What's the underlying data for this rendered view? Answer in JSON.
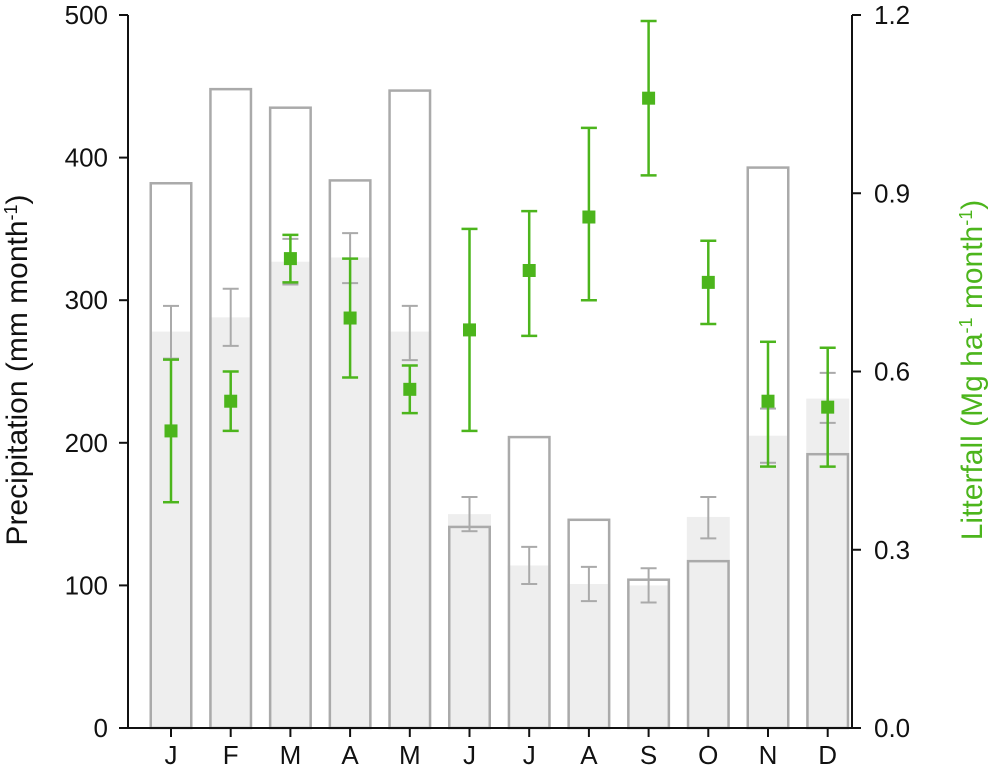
{
  "chart_data": {
    "type": "bar",
    "categories": [
      "J",
      "F",
      "M",
      "A",
      "M",
      "J",
      "J",
      "A",
      "S",
      "O",
      "N",
      "D"
    ],
    "ylabel_left": {
      "main": "Precipitation (mm month",
      "sup": "-1",
      "close": ")"
    },
    "ylabel_right": {
      "pre": "Litterfall (Mg ha",
      "sup1": "-1",
      "mid": " month",
      "sup2": "-1",
      "close": ")"
    },
    "ylim_left": [
      0,
      500
    ],
    "ylim_right": [
      0,
      1.2
    ],
    "yticks_left": [
      "0",
      "100",
      "200",
      "300",
      "400",
      "500"
    ],
    "yticks_right": [
      "0.0",
      "0.3",
      "0.6",
      "0.9",
      "1.2"
    ],
    "grid": false,
    "series": [
      {
        "kind": "outline-bar",
        "axis": "left",
        "values": [
          382,
          448,
          435,
          384,
          447,
          141,
          204,
          146,
          104,
          117,
          393,
          192
        ]
      },
      {
        "kind": "filled-bar",
        "axis": "left",
        "values": [
          278,
          288,
          327,
          330,
          278,
          150,
          114,
          101,
          100,
          148,
          205,
          231
        ],
        "error_low": [
          259,
          268,
          311,
          312,
          258,
          138,
          101,
          89,
          88,
          133,
          186,
          214
        ],
        "error_high": [
          296,
          308,
          343,
          347,
          296,
          162,
          127,
          113,
          112,
          162,
          224,
          249
        ]
      },
      {
        "kind": "scatter",
        "axis": "right",
        "values": [
          0.5,
          0.55,
          0.79,
          0.69,
          0.57,
          0.67,
          0.77,
          0.86,
          1.06,
          0.75,
          0.55,
          0.54
        ],
        "error_low": [
          0.38,
          0.5,
          0.75,
          0.59,
          0.53,
          0.5,
          0.66,
          0.72,
          0.93,
          0.68,
          0.44,
          0.44
        ],
        "error_high": [
          0.62,
          0.6,
          0.83,
          0.79,
          0.61,
          0.84,
          0.87,
          1.01,
          1.19,
          0.82,
          0.65,
          0.64
        ]
      }
    ],
    "colors": {
      "outline_bar": "#aaaaaa",
      "filled_bar": "#eeeeee",
      "filled_error": "#aaaaaa",
      "litterfall": "#4cb51c",
      "axis": "#111111"
    }
  }
}
